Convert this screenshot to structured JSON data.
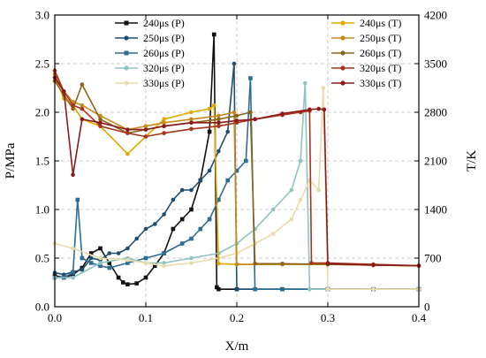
{
  "chart_data": {
    "type": "line",
    "xlabel": "X/m",
    "ylabel_left": "P/MPa",
    "ylabel_right": "T/K",
    "xlim": [
      0,
      0.4
    ],
    "ylim_left": [
      0,
      3.0
    ],
    "ylim_right": [
      0,
      4200
    ],
    "x_ticks": [
      "0.0",
      "0.1",
      "0.2",
      "0.3",
      "0.4"
    ],
    "y_left_ticks": [
      "0.0",
      "0.5",
      "1.0",
      "1.5",
      "2.0",
      "2.5",
      "3.0"
    ],
    "y_right_ticks": [
      "0",
      "700",
      "1400",
      "2100",
      "2800",
      "3500",
      "4200"
    ],
    "grid": true,
    "legend_placement": "top, two columns",
    "series": [
      {
        "name": "240μs (P)",
        "axis": "left",
        "color": "#111111",
        "marker": "square",
        "x": [
          0,
          0.01,
          0.02,
          0.03,
          0.04,
          0.05,
          0.06,
          0.07,
          0.075,
          0.08,
          0.09,
          0.1,
          0.11,
          0.12,
          0.13,
          0.14,
          0.15,
          0.16,
          0.17,
          0.175,
          0.178,
          0.18,
          0.2,
          0.25,
          0.3,
          0.35,
          0.4
        ],
        "y": [
          0.32,
          0.3,
          0.33,
          0.4,
          0.55,
          0.6,
          0.45,
          0.3,
          0.25,
          0.23,
          0.24,
          0.3,
          0.42,
          0.55,
          0.8,
          0.9,
          1.0,
          1.3,
          1.8,
          2.8,
          0.2,
          0.18,
          0.18,
          0.18,
          0.18,
          0.18,
          0.18
        ]
      },
      {
        "name": "250μs (P)",
        "axis": "left",
        "color": "#1f4e70",
        "marker": "circle",
        "x": [
          0,
          0.01,
          0.02,
          0.03,
          0.04,
          0.05,
          0.06,
          0.07,
          0.08,
          0.09,
          0.1,
          0.11,
          0.12,
          0.13,
          0.14,
          0.15,
          0.16,
          0.17,
          0.18,
          0.19,
          0.197,
          0.2,
          0.25,
          0.3,
          0.35,
          0.4
        ],
        "y": [
          0.35,
          0.33,
          0.36,
          0.38,
          0.5,
          0.48,
          0.55,
          0.55,
          0.6,
          0.7,
          0.8,
          0.85,
          0.95,
          1.1,
          1.2,
          1.2,
          1.3,
          1.4,
          1.6,
          1.8,
          2.5,
          0.18,
          0.18,
          0.18,
          0.18,
          0.18
        ]
      },
      {
        "name": "260μs (P)",
        "axis": "left",
        "color": "#2e6d92",
        "marker": "square",
        "x": [
          0,
          0.01,
          0.02,
          0.025,
          0.03,
          0.04,
          0.05,
          0.06,
          0.08,
          0.1,
          0.12,
          0.14,
          0.15,
          0.16,
          0.17,
          0.18,
          0.19,
          0.2,
          0.21,
          0.215,
          0.22,
          0.25,
          0.3,
          0.35,
          0.4
        ],
        "y": [
          0.3,
          0.3,
          0.35,
          1.1,
          0.5,
          0.45,
          0.42,
          0.4,
          0.45,
          0.5,
          0.55,
          0.65,
          0.7,
          0.8,
          0.9,
          1.1,
          1.3,
          1.4,
          1.5,
          2.35,
          0.18,
          0.18,
          0.18,
          0.18,
          0.18
        ]
      },
      {
        "name": "320μs (P)",
        "axis": "left",
        "color": "#8fc2c2",
        "marker": "circle",
        "x": [
          0,
          0.02,
          0.05,
          0.08,
          0.1,
          0.12,
          0.15,
          0.18,
          0.2,
          0.22,
          0.24,
          0.26,
          0.27,
          0.275,
          0.28,
          0.3,
          0.35,
          0.4
        ],
        "y": [
          0.3,
          0.3,
          0.45,
          0.5,
          0.45,
          0.45,
          0.5,
          0.55,
          0.65,
          0.8,
          1.0,
          1.2,
          1.5,
          2.3,
          0.18,
          0.18,
          0.18,
          0.18
        ]
      },
      {
        "name": "330μs (P)",
        "axis": "left",
        "color": "#eadbaa",
        "marker": "circle",
        "x": [
          0,
          0.02,
          0.05,
          0.08,
          0.1,
          0.12,
          0.15,
          0.18,
          0.2,
          0.22,
          0.24,
          0.26,
          0.27,
          0.28,
          0.29,
          0.295,
          0.3,
          0.35,
          0.4
        ],
        "y": [
          0.65,
          0.6,
          0.5,
          0.48,
          0.45,
          0.42,
          0.45,
          0.5,
          0.55,
          0.65,
          0.75,
          0.9,
          1.1,
          1.3,
          1.2,
          2.25,
          0.18,
          0.18,
          0.18
        ]
      },
      {
        "name": "240μs (T)",
        "axis": "right",
        "color": "#e0a800",
        "marker": "circle",
        "x": [
          0,
          0.01,
          0.02,
          0.03,
          0.05,
          0.08,
          0.1,
          0.12,
          0.15,
          0.17,
          0.175,
          0.18,
          0.2,
          0.25,
          0.3,
          0.35,
          0.4
        ],
        "y": [
          3300,
          3000,
          2900,
          2700,
          2600,
          2200,
          2450,
          2700,
          2800,
          2850,
          2900,
          620,
          610,
          610,
          610,
          600,
          590
        ]
      },
      {
        "name": "250μs (T)",
        "axis": "right",
        "color": "#c88a1c",
        "marker": "circle",
        "x": [
          0,
          0.01,
          0.02,
          0.03,
          0.05,
          0.08,
          0.1,
          0.12,
          0.15,
          0.18,
          0.197,
          0.2,
          0.25,
          0.3,
          0.35,
          0.4
        ],
        "y": [
          3350,
          3100,
          2950,
          2900,
          2750,
          2550,
          2600,
          2650,
          2700,
          2750,
          2800,
          610,
          610,
          610,
          600,
          590
        ]
      },
      {
        "name": "260μs (T)",
        "axis": "right",
        "color": "#8a6418",
        "marker": "circle",
        "x": [
          0,
          0.01,
          0.02,
          0.03,
          0.05,
          0.08,
          0.1,
          0.12,
          0.15,
          0.18,
          0.2,
          0.215,
          0.22,
          0.25,
          0.3,
          0.35,
          0.4
        ],
        "y": [
          3250,
          3050,
          2850,
          3200,
          2700,
          2500,
          2550,
          2600,
          2650,
          2700,
          2750,
          2800,
          620,
          620,
          610,
          600,
          590
        ]
      },
      {
        "name": "320μs (T)",
        "axis": "right",
        "color": "#a8341c",
        "marker": "circle",
        "x": [
          0,
          0.01,
          0.02,
          0.03,
          0.05,
          0.08,
          0.1,
          0.12,
          0.15,
          0.18,
          0.2,
          0.22,
          0.25,
          0.27,
          0.28,
          0.282,
          0.3,
          0.35,
          0.4
        ],
        "y": [
          3400,
          3100,
          2900,
          2850,
          2600,
          2500,
          2450,
          2500,
          2560,
          2600,
          2650,
          2700,
          2760,
          2800,
          2820,
          630,
          630,
          610,
          590
        ]
      },
      {
        "name": "330μs (T)",
        "axis": "right",
        "color": "#8b1a1a",
        "marker": "circle",
        "x": [
          0,
          0.01,
          0.02,
          0.03,
          0.05,
          0.08,
          0.1,
          0.12,
          0.15,
          0.18,
          0.2,
          0.22,
          0.25,
          0.28,
          0.29,
          0.296,
          0.3,
          0.35,
          0.4
        ],
        "y": [
          3300,
          3100,
          1900,
          2700,
          2650,
          2550,
          2550,
          2600,
          2650,
          2650,
          2680,
          2700,
          2780,
          2840,
          2850,
          2840,
          620,
          600,
          590
        ]
      }
    ]
  }
}
